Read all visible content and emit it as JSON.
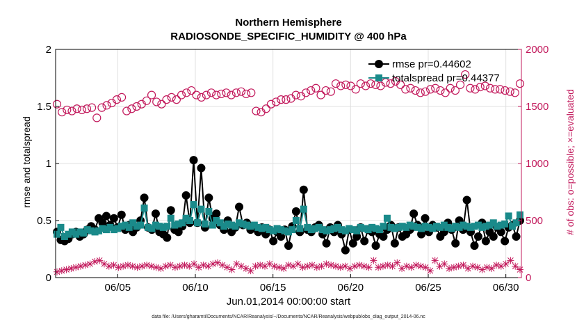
{
  "chart_data": {
    "type": "line",
    "title": [
      "Northern Hemisphere",
      "RADIOSONDE_SPECIFIC_HUMIDITY @ 400 hPa"
    ],
    "xlabel": "Jun.01,2014 00:00:00 start",
    "ylabel_left": "rmse and totalspread",
    "ylabel_right": "# of obs: o=possible; ×=evaluated",
    "footnote": "data file: /Users/gharamti/Documents/NCAR/Reanalysis/~/Documents/NCAR/Reanalysis/webpub/obs_diag_output_2014-06.nc",
    "x_ticks": [
      "06/05",
      "06/10",
      "06/15",
      "06/20",
      "06/25",
      "06/30"
    ],
    "x_tick_days": [
      5,
      10,
      15,
      20,
      25,
      30
    ],
    "xlim_days": [
      1,
      31
    ],
    "y_left_ticks": [
      "0",
      "0.5",
      "1",
      "1.5",
      "2"
    ],
    "ylim_left": [
      0,
      2
    ],
    "y_right_ticks": [
      "0",
      "500",
      "1000",
      "1500",
      "2000"
    ],
    "ylim_right": [
      0,
      2000
    ],
    "grid": true,
    "legend_position": "top-right",
    "series": [
      {
        "name": "rmse",
        "legend": "rmse pr=0.44602",
        "color": "#000000",
        "marker": "circle",
        "axis": "left",
        "values": [
          0.4,
          0.33,
          0.32,
          0.34,
          0.38,
          0.4,
          0.36,
          0.38,
          0.42,
          0.45,
          0.42,
          0.52,
          0.48,
          0.54,
          0.46,
          0.52,
          0.44,
          0.55,
          0.42,
          0.46,
          0.4,
          0.44,
          0.5,
          0.7,
          0.44,
          0.42,
          0.56,
          0.4,
          0.38,
          0.35,
          0.59,
          0.42,
          0.4,
          0.45,
          0.72,
          0.48,
          1.03,
          0.48,
          0.96,
          0.44,
          0.7,
          0.52,
          0.56,
          0.46,
          0.42,
          0.5,
          0.4,
          0.44,
          0.62,
          0.46,
          0.48,
          0.42,
          0.44,
          0.4,
          0.44,
          0.38,
          0.42,
          0.32,
          0.4,
          0.36,
          0.42,
          0.28,
          0.45,
          0.58,
          0.4,
          0.77,
          0.42,
          0.4,
          0.44,
          0.46,
          0.38,
          0.3,
          0.44,
          0.4,
          0.46,
          0.38,
          0.24,
          0.42,
          0.3,
          0.36,
          0.44,
          0.32,
          0.42,
          0.4,
          0.28,
          0.38,
          0.36,
          0.42,
          0.46,
          0.3,
          0.44,
          0.36,
          0.38,
          0.42,
          0.56,
          0.46,
          0.38,
          0.52,
          0.4,
          0.46,
          0.44,
          0.36,
          0.4,
          0.48,
          0.42,
          0.3,
          0.5,
          0.42,
          0.68,
          0.4,
          0.28,
          0.36,
          0.48,
          0.32,
          0.4,
          0.36,
          0.44,
          0.4,
          0.32,
          0.44,
          0.46,
          0.36,
          0.5
        ]
      },
      {
        "name": "totalspread",
        "legend": "totalspread pr=0.44377",
        "color": "#1a8a8a",
        "marker": "square",
        "axis": "left",
        "values": [
          0.38,
          0.44,
          0.36,
          0.38,
          0.4,
          0.38,
          0.4,
          0.39,
          0.42,
          0.41,
          0.4,
          0.41,
          0.43,
          0.42,
          0.44,
          0.42,
          0.43,
          0.45,
          0.46,
          0.44,
          0.48,
          0.45,
          0.46,
          0.61,
          0.44,
          0.43,
          0.46,
          0.45,
          0.44,
          0.45,
          0.52,
          0.46,
          0.47,
          0.48,
          0.52,
          0.5,
          0.64,
          0.48,
          0.6,
          0.47,
          0.58,
          0.46,
          0.5,
          0.48,
          0.45,
          0.47,
          0.46,
          0.45,
          0.48,
          0.47,
          0.46,
          0.45,
          0.46,
          0.44,
          0.43,
          0.44,
          0.42,
          0.41,
          0.43,
          0.42,
          0.41,
          0.4,
          0.42,
          0.5,
          0.43,
          0.6,
          0.44,
          0.42,
          0.43,
          0.44,
          0.42,
          0.41,
          0.42,
          0.43,
          0.44,
          0.42,
          0.41,
          0.43,
          0.42,
          0.41,
          0.44,
          0.43,
          0.42,
          0.44,
          0.43,
          0.42,
          0.45,
          0.52,
          0.44,
          0.43,
          0.44,
          0.45,
          0.44,
          0.46,
          0.45,
          0.44,
          0.43,
          0.45,
          0.44,
          0.43,
          0.45,
          0.44,
          0.46,
          0.44,
          0.43,
          0.45,
          0.44,
          0.46,
          0.45,
          0.44,
          0.45,
          0.46,
          0.44,
          0.45,
          0.46,
          0.48,
          0.45,
          0.46,
          0.47,
          0.54,
          0.45,
          0.48,
          0.55
        ]
      },
      {
        "name": "obs possible",
        "color": "#c2185b",
        "marker": "open-circle",
        "axis": "right",
        "values": [
          1520,
          1450,
          1470,
          1460,
          1480,
          1470,
          1480,
          1490,
          1400,
          1490,
          1510,
          1530,
          1560,
          1580,
          1460,
          1480,
          1500,
          1520,
          1550,
          1600,
          1540,
          1520,
          1560,
          1580,
          1560,
          1600,
          1620,
          1640,
          1600,
          1580,
          1600,
          1620,
          1600,
          1610,
          1620,
          1600,
          1620,
          1630,
          1610,
          1620,
          1460,
          1450,
          1480,
          1520,
          1540,
          1560,
          1560,
          1570,
          1600,
          1590,
          1620,
          1640,
          1660,
          1600,
          1640,
          1630,
          1700,
          1680,
          1690,
          1680,
          1650,
          1700,
          1680,
          1700,
          1690,
          1680,
          1710,
          1700,
          1720,
          1690,
          1650,
          1660,
          1640,
          1620,
          1630,
          1650,
          1660,
          1640,
          1620,
          1660,
          1640,
          1690,
          1780,
          1660,
          1650,
          1670,
          1680,
          1660,
          1650,
          1650,
          1640,
          1630,
          1620,
          1700
        ]
      },
      {
        "name": "obs evaluated",
        "color": "#c2185b",
        "marker": "x",
        "axis": "right",
        "values": [
          50,
          60,
          70,
          80,
          90,
          100,
          110,
          120,
          140,
          150,
          120,
          100,
          110,
          90,
          100,
          110,
          100,
          90,
          100,
          110,
          100,
          90,
          80,
          100,
          110,
          90,
          100,
          110,
          100,
          120,
          90,
          110,
          100,
          120,
          130,
          110,
          90,
          70,
          120,
          100,
          80,
          60,
          100,
          110,
          100,
          120,
          100,
          90,
          80,
          110,
          100,
          120,
          90,
          100,
          110,
          90,
          100,
          120,
          110,
          100,
          90,
          100,
          80,
          100,
          110,
          100,
          90,
          150,
          90,
          100,
          110,
          100,
          130,
          80,
          100,
          90,
          110,
          100,
          90,
          60,
          150,
          100,
          120,
          80,
          90,
          100,
          110,
          80,
          100,
          90,
          70,
          90,
          80,
          110,
          100,
          120,
          150,
          100,
          70
        ]
      }
    ]
  }
}
